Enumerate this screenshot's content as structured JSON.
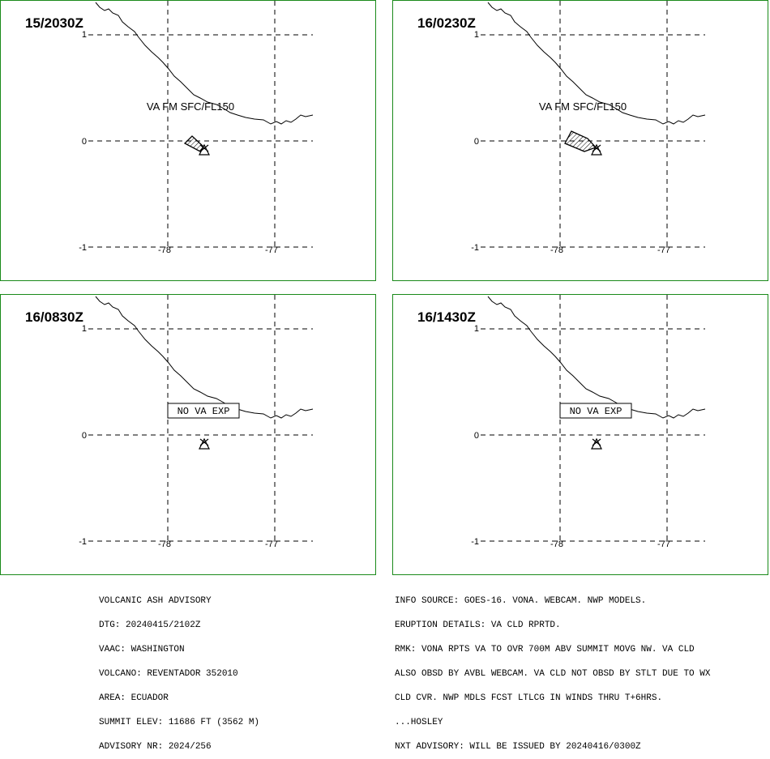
{
  "panels": [
    {
      "time": "15/2030Z",
      "label": "VA FM SFC/FL150",
      "ash": "small"
    },
    {
      "time": "16/0230Z",
      "label": "VA FM SFC/FL150",
      "ash": "large"
    },
    {
      "time": "16/0830Z",
      "label": "NO VA EXP",
      "ash": "none"
    },
    {
      "time": "16/1430Z",
      "label": "NO VA EXP",
      "ash": "none"
    }
  ],
  "axes": {
    "lat_ticks": [
      "1",
      "0",
      "-1"
    ],
    "lon_ticks": [
      "-78",
      "-77"
    ]
  },
  "advisory_left": [
    "VOLCANIC ASH ADVISORY",
    "DTG: 20240415/2102Z",
    "VAAC: WASHINGTON",
    "VOLCANO: REVENTADOR 352010",
    "AREA: ECUADOR",
    "SUMMIT ELEV: 11686 FT (3562 M)",
    "ADVISORY NR: 2024/256"
  ],
  "advisory_right": [
    "INFO SOURCE: GOES-16. VONA. WEBCAM. NWP MODELS.",
    "ERUPTION DETAILS: VA CLD RPRTD.",
    "RMK: VONA RPTS VA TO OVR 700M ABV SUMMIT MOVG NW. VA CLD",
    "ALSO OBSD BY AVBL WEBCAM. VA CLD NOT OBSD BY STLT DUE TO WX",
    "CLD CVR. NWP MDLS FCST LTLCG IN WINDS THRU T+6HRS.",
    "...HOSLEY",
    "NXT ADVISORY: WILL BE ISSUED BY 20240416/0300Z"
  ],
  "colors": {
    "border": "#1a8a1a",
    "lines": "#000000"
  }
}
